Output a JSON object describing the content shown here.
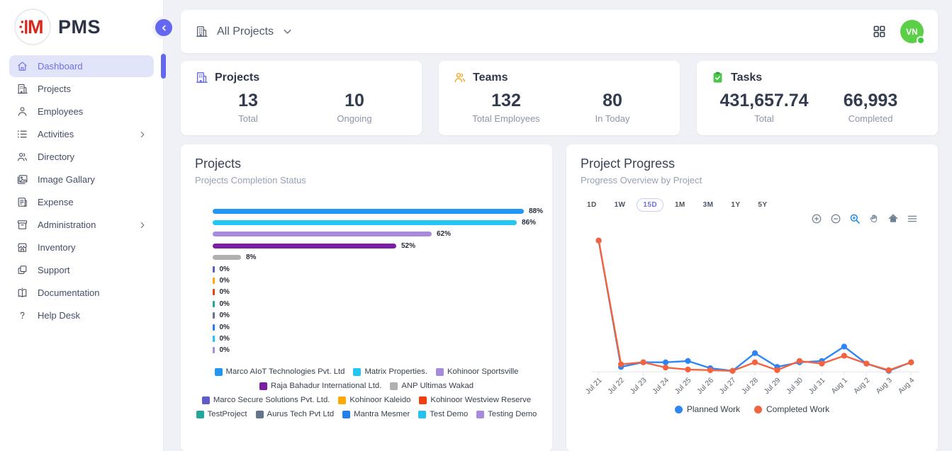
{
  "app": {
    "name": "PMS"
  },
  "sidebar": {
    "items": [
      {
        "label": "Dashboard",
        "icon": "home",
        "active": true,
        "chevron": false
      },
      {
        "label": "Projects",
        "icon": "building",
        "active": false,
        "chevron": false
      },
      {
        "label": "Employees",
        "icon": "person",
        "active": false,
        "chevron": false
      },
      {
        "label": "Activities",
        "icon": "activities",
        "active": false,
        "chevron": true
      },
      {
        "label": "Directory",
        "icon": "directory",
        "active": false,
        "chevron": false
      },
      {
        "label": "Image Gallary",
        "icon": "image",
        "active": false,
        "chevron": false
      },
      {
        "label": "Expense",
        "icon": "expense",
        "active": false,
        "chevron": false
      },
      {
        "label": "Administration",
        "icon": "administration",
        "active": false,
        "chevron": true
      },
      {
        "label": "Inventory",
        "icon": "inventory",
        "active": false,
        "chevron": false
      },
      {
        "label": "Support",
        "icon": "support",
        "active": false,
        "chevron": false
      },
      {
        "label": "Documentation",
        "icon": "documentation",
        "active": false,
        "chevron": false
      },
      {
        "label": "Help Desk",
        "icon": "helpdesk",
        "active": false,
        "chevron": false
      }
    ]
  },
  "topbar": {
    "project_selector": "All Projects",
    "avatar_initials": "VN"
  },
  "stats": {
    "cards": [
      {
        "title": "Projects",
        "icon": "building",
        "icon_color": "#6366F1",
        "values": [
          {
            "value": "13",
            "label": "Total"
          },
          {
            "value": "10",
            "label": "Ongoing"
          }
        ]
      },
      {
        "title": "Teams",
        "icon": "people",
        "icon_color": "#F5A623",
        "values": [
          {
            "value": "132",
            "label": "Total Employees"
          },
          {
            "value": "80",
            "label": "In Today"
          }
        ]
      },
      {
        "title": "Tasks",
        "icon": "clipboard-check",
        "icon_color": "#4CC749",
        "values": [
          {
            "value": "431,657.74",
            "label": "Total"
          },
          {
            "value": "66,993",
            "label": "Completed"
          }
        ]
      }
    ]
  },
  "projects_card": {
    "title": "Projects",
    "subtitle": "Projects Completion Status"
  },
  "progress_card": {
    "title": "Project Progress",
    "subtitle": "Progress Overview by Project",
    "ranges": [
      "1D",
      "1W",
      "15D",
      "1M",
      "3M",
      "1Y",
      "5Y"
    ],
    "active_range": "15D",
    "toolbar_icons": [
      "zoom-in",
      "zoom-out",
      "selection-zoom",
      "pan",
      "home",
      "menu"
    ]
  },
  "chart_data": [
    {
      "type": "bar",
      "orientation": "horizontal",
      "title": "Projects",
      "subtitle": "Projects Completion Status",
      "value_suffix": "%",
      "categories": [
        "Marco AIoT Technologies Pvt. Ltd",
        "Matrix Properties.",
        "Kohinoor Sportsville",
        "Raja Bahadur International Ltd.",
        "ANP Ultimas Wakad",
        "Marco Secure Solutions Pvt. Ltd.",
        "Kohinoor Kaleido",
        "Kohinoor Westview Reserve",
        "TestProject",
        "Aurus Tech Pvt Ltd",
        "Mantra Mesmer",
        "Test Demo",
        "Testing Demo"
      ],
      "values": [
        88,
        86,
        62,
        52,
        8,
        0,
        0,
        0,
        0,
        0,
        0,
        0,
        0
      ],
      "colors": [
        "#2296F3",
        "#24C6F5",
        "#A78BDB",
        "#7B1FA2",
        "#B0B0B0",
        "#5F5CC7",
        "#FFA800",
        "#EE3E12",
        "#26A69A",
        "#64748B",
        "#2680EB",
        "#22C3F0",
        "#A78BDB"
      ],
      "xlim": [
        0,
        100
      ],
      "grid": false,
      "legend_position": "bottom"
    },
    {
      "type": "line",
      "title": "Project Progress",
      "subtitle": "Progress Overview by Project",
      "x": [
        "Jul 21",
        "Jul 22",
        "Jul 23",
        "Jul 24",
        "Jul 25",
        "Jul 26",
        "Jul 27",
        "Jul 28",
        "Jul 29",
        "Jul 30",
        "Jul 31",
        "Aug 1",
        "Aug 2",
        "Aug 3",
        "Aug 4"
      ],
      "series": [
        {
          "name": "Planned Work",
          "color": "#2E86F5",
          "values": [
            100,
            3.5,
            7,
            7,
            8,
            2.5,
            0.5,
            14,
            3.5,
            7,
            8,
            19,
            6,
            0.5,
            7
          ]
        },
        {
          "name": "Completed Work",
          "color": "#F4633E",
          "values": [
            100,
            5.5,
            7,
            3,
            1.5,
            1,
            0.5,
            7,
            1,
            8,
            6,
            12,
            6,
            1,
            7
          ]
        }
      ],
      "ylim": [
        0,
        100
      ],
      "y_axis_visible": false,
      "grid": false,
      "legend_position": "bottom"
    }
  ],
  "colors": {
    "accent": "#6467EF",
    "active_item_bg": "#E2E4FA",
    "avatar_bg": "#5BD047",
    "logo_red": "#D9261C",
    "planned": "#2E86F5",
    "completed": "#F4633E"
  }
}
